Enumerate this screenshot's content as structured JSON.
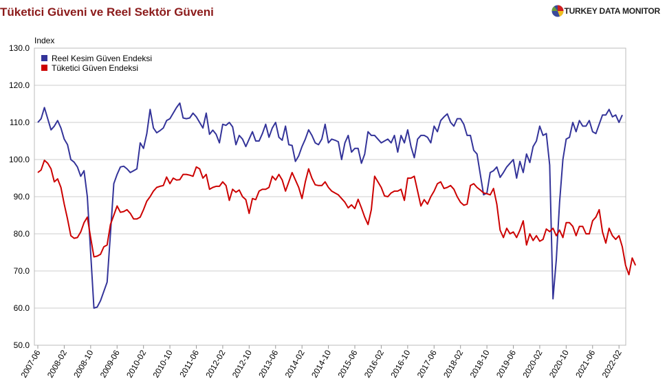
{
  "title": "Tüketici Güveni ve Reel Sektör Güveni",
  "brand": {
    "logo_icon": "pie-globe-icon",
    "name": "TURKEY DATA MONITOR"
  },
  "chart_data": {
    "type": "line",
    "ylabel": "Index",
    "xlabel": "",
    "ylim": [
      50,
      130
    ],
    "yticks": [
      "130.0",
      "120.0",
      "110.0",
      "100.0",
      "90.0",
      "80.0",
      "70.0",
      "60.0",
      "50.0"
    ],
    "ytick_values": [
      130,
      120,
      110,
      100,
      90,
      80,
      70,
      60,
      50
    ],
    "grid": true,
    "legend_position": "top-left",
    "x_start": "2007-06",
    "xtick_labels": [
      "2007-06",
      "2008-02",
      "2008-10",
      "2009-06",
      "2010-02",
      "2010-10",
      "2011-06",
      "2012-02",
      "2012-10",
      "2013-06",
      "2014-02",
      "2014-10",
      "2015-06",
      "2016-02",
      "2016-10",
      "2017-06",
      "2018-02",
      "2018-10",
      "2019-06",
      "2020-02",
      "2020-10",
      "2021-06",
      "2022-02"
    ],
    "series": [
      {
        "name": "Reel Kesim Güven Endeksi",
        "color": "#333399",
        "values": [
          110.0,
          111.0,
          114.0,
          111.0,
          108.0,
          109.0,
          110.5,
          108.5,
          105.5,
          104.0,
          100.0,
          99.3,
          98.0,
          95.5,
          97.0,
          90.0,
          75.0,
          60.0,
          60.3,
          62.0,
          64.5,
          67.0,
          80.0,
          93.5,
          96.0,
          98.0,
          98.2,
          97.5,
          96.5,
          97.0,
          97.5,
          104.5,
          103.0,
          107.0,
          113.5,
          108.5,
          107.2,
          107.8,
          108.5,
          110.5,
          111.0,
          112.5,
          114.0,
          115.2,
          111.2,
          111.0,
          111.2,
          112.5,
          111.5,
          110.0,
          108.5,
          112.5,
          106.8,
          107.9,
          106.8,
          104.5,
          109.5,
          109.2,
          110.0,
          108.8,
          104.0,
          106.5,
          105.5,
          103.5,
          105.5,
          107.5,
          105.0,
          105.0,
          107.0,
          109.5,
          106.0,
          108.5,
          110.0,
          106.0,
          105.2,
          109.0,
          104.0,
          103.8,
          99.5,
          101.0,
          103.5,
          105.5,
          108.0,
          106.5,
          104.5,
          104.0,
          105.5,
          109.5,
          104.5,
          105.5,
          105.2,
          104.8,
          100.0,
          104.5,
          106.5,
          102.0,
          103.0,
          103.0,
          99.0,
          101.5,
          107.5,
          106.5,
          106.5,
          105.5,
          104.5,
          105.0,
          105.5,
          104.5,
          106.5,
          102.0,
          106.5,
          104.5,
          108.0,
          103.5,
          100.5,
          105.5,
          106.5,
          106.5,
          106.0,
          104.5,
          109.0,
          107.5,
          110.5,
          111.5,
          112.3,
          110.0,
          109.0,
          111.0,
          111.0,
          109.5,
          106.5,
          106.5,
          102.5,
          101.5,
          96.0,
          90.5,
          91.0,
          96.5,
          97.0,
          98.0,
          95.2,
          96.5,
          98.0,
          99.0,
          100.0,
          95.0,
          99.5,
          96.5,
          101.5,
          99.2,
          103.5,
          105.0,
          109.0,
          106.5,
          107.0,
          98.5,
          62.5,
          73.0,
          88.5,
          100.0,
          105.5,
          106.0,
          110.0,
          107.5,
          110.5,
          109.0,
          109.0,
          110.5,
          107.5,
          107.0,
          109.5,
          112.0,
          112.0,
          113.5,
          111.5,
          112.0,
          110.0,
          112.0
        ]
      },
      {
        "name": "Tüketici Güven Endeksi",
        "color": "#cc0000",
        "values": [
          96.5,
          97.2,
          99.8,
          99.0,
          97.5,
          94.0,
          94.8,
          92.5,
          88.0,
          84.0,
          79.5,
          78.8,
          79.0,
          80.5,
          83.0,
          84.5,
          79.0,
          73.8,
          74.0,
          74.5,
          76.5,
          77.0,
          82.5,
          85.0,
          87.5,
          85.8,
          86.0,
          86.5,
          85.5,
          84.0,
          84.0,
          84.5,
          86.5,
          88.8,
          90.0,
          91.5,
          92.5,
          92.8,
          93.0,
          95.3,
          93.5,
          95.0,
          94.5,
          94.6,
          96.0,
          96.0,
          95.8,
          95.5,
          98.0,
          97.5,
          95.0,
          96.0,
          92.0,
          92.5,
          92.8,
          92.8,
          94.0,
          93.0,
          89.0,
          92.0,
          91.2,
          91.8,
          90.0,
          89.2,
          85.5,
          89.5,
          89.2,
          91.5,
          92.0,
          92.0,
          92.5,
          95.5,
          94.5,
          96.0,
          94.5,
          91.5,
          94.0,
          96.5,
          94.5,
          92.5,
          89.5,
          94.0,
          97.5,
          95.0,
          93.2,
          93.0,
          93.0,
          94.0,
          92.5,
          91.5,
          91.0,
          90.5,
          89.5,
          88.5,
          87.0,
          87.8,
          86.8,
          89.3,
          87.0,
          84.5,
          82.5,
          86.5,
          95.5,
          94.0,
          92.5,
          90.2,
          90.0,
          91.0,
          91.5,
          91.5,
          92.0,
          89.0,
          95.0,
          95.0,
          95.5,
          91.5,
          87.5,
          89.2,
          88.0,
          90.0,
          91.5,
          93.5,
          94.0,
          92.2,
          92.5,
          93.0,
          92.0,
          90.0,
          88.5,
          87.7,
          88.0,
          93.0,
          93.5,
          92.5,
          91.8,
          91.0,
          90.8,
          90.5,
          92.2,
          88.0,
          81.0,
          79.0,
          81.5,
          80.0,
          80.5,
          79.0,
          81.0,
          83.5,
          77.0,
          80.0,
          78.2,
          79.5,
          78.0,
          78.5,
          81.3,
          80.6,
          81.5,
          79.5,
          81.0,
          79.0,
          83.0,
          83.0,
          82.0,
          79.5,
          82.0,
          82.0,
          80.0,
          80.0,
          83.5,
          84.5,
          86.5,
          80.5,
          77.5,
          81.5,
          79.5,
          78.5,
          79.5,
          76.5,
          71.5,
          69.0,
          73.5,
          71.5
        ]
      }
    ]
  }
}
